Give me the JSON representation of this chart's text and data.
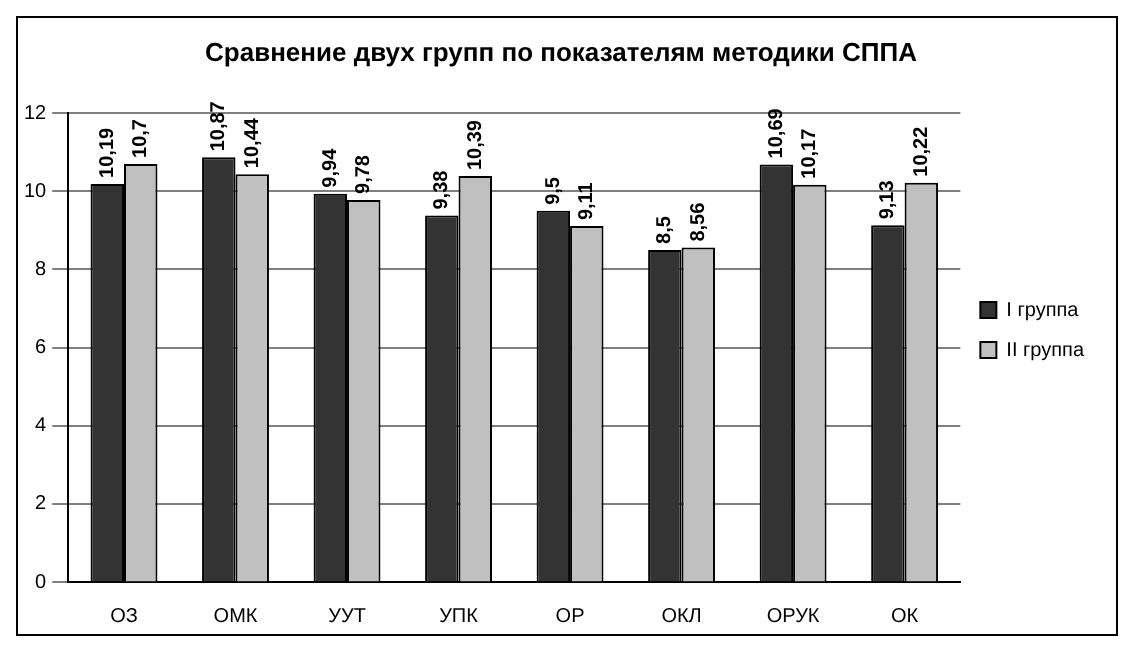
{
  "chart_data": {
    "type": "bar",
    "title": "Сравнение двух групп по показателям методики СППА",
    "categories": [
      "ОЗ",
      "ОМК",
      "УУТ",
      "УПК",
      "ОР",
      "ОКЛ",
      "ОРУК",
      "ОК"
    ],
    "series": [
      {
        "name": "I группа",
        "color": "#333333",
        "values": [
          10.19,
          10.87,
          9.94,
          9.38,
          9.5,
          8.5,
          10.69,
          9.13
        ],
        "value_labels": [
          "10,19",
          "10,87",
          "9,94",
          "9,38",
          "9,5",
          "8,5",
          "10,69",
          "9,13"
        ]
      },
      {
        "name": "II группа",
        "color": "#c0c0c0",
        "values": [
          10.7,
          10.44,
          9.78,
          10.39,
          9.11,
          8.56,
          10.17,
          10.22
        ],
        "value_labels": [
          "10,7",
          "10,44",
          "9,78",
          "10,39",
          "9,11",
          "8,56",
          "10,17",
          "10,22"
        ]
      }
    ],
    "ylim": [
      0,
      12
    ],
    "yticks": [
      0,
      2,
      4,
      6,
      8,
      10,
      12
    ],
    "grid": "y",
    "legend": "right"
  }
}
